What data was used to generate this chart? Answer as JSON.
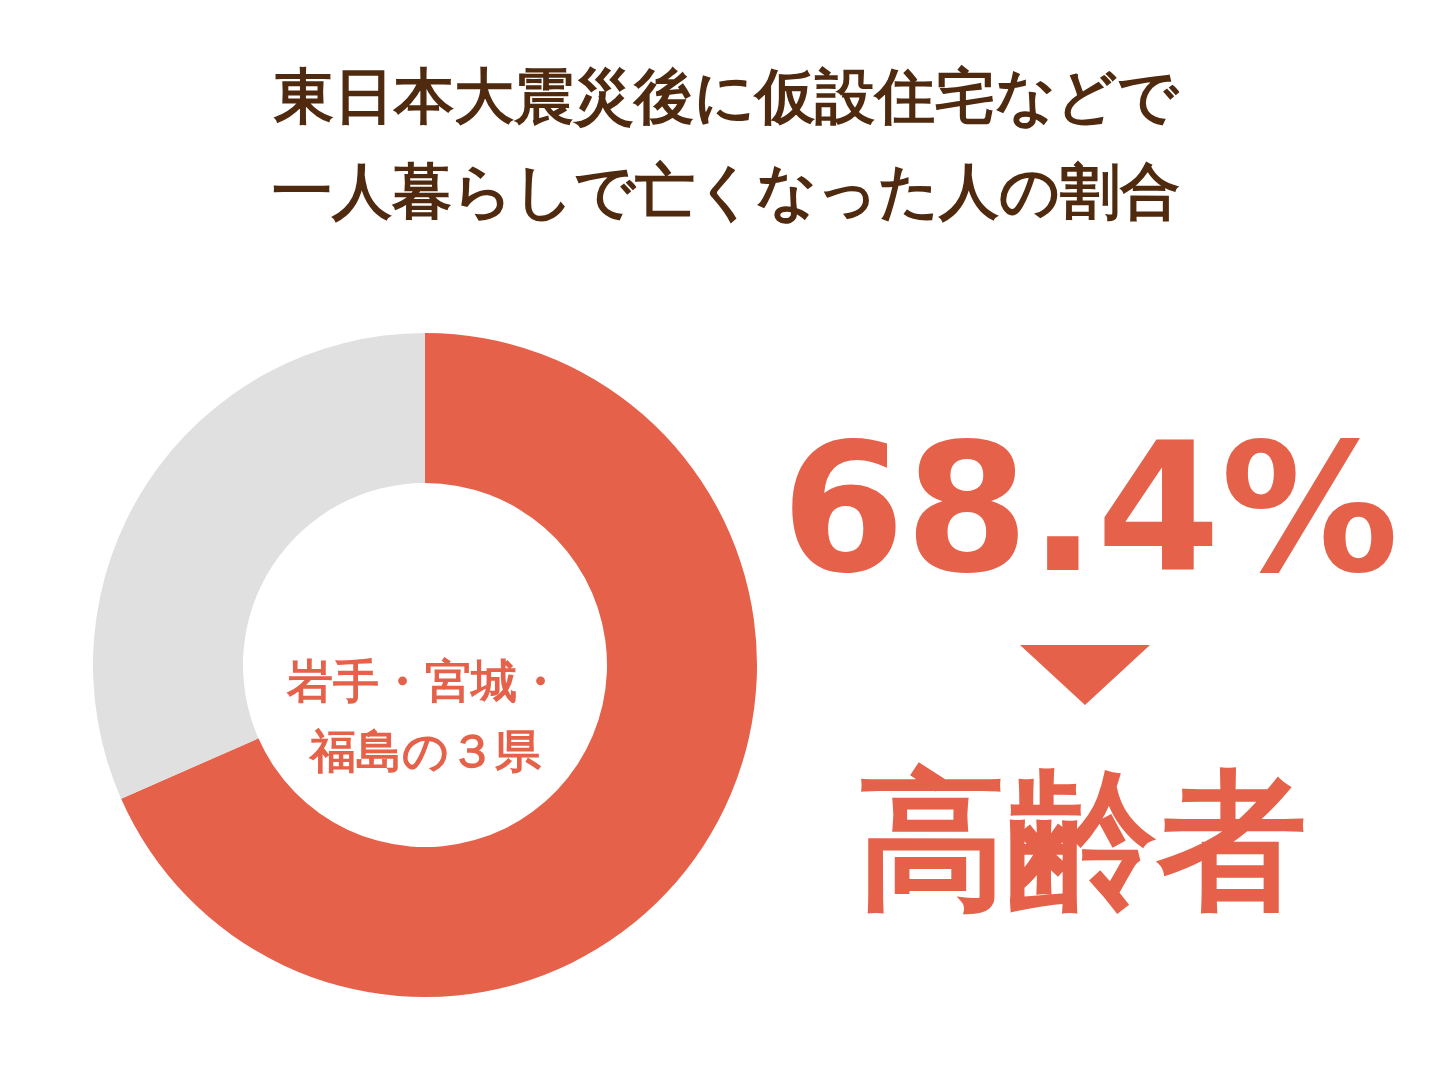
{
  "chart_data": {
    "type": "donut",
    "title": "東日本大震災後に仮設住宅などで一人暮らしで亡くなった人の割合",
    "categories": [
      "高齢者",
      null
    ],
    "values": [
      68.4,
      31.6
    ],
    "colors": [
      "#e5614a",
      "#e0e0e0"
    ],
    "value_labels": [
      "68.4%",
      null
    ],
    "annotations": [
      "岩手・宮城・福島の３県"
    ],
    "legend": "right"
  }
}
